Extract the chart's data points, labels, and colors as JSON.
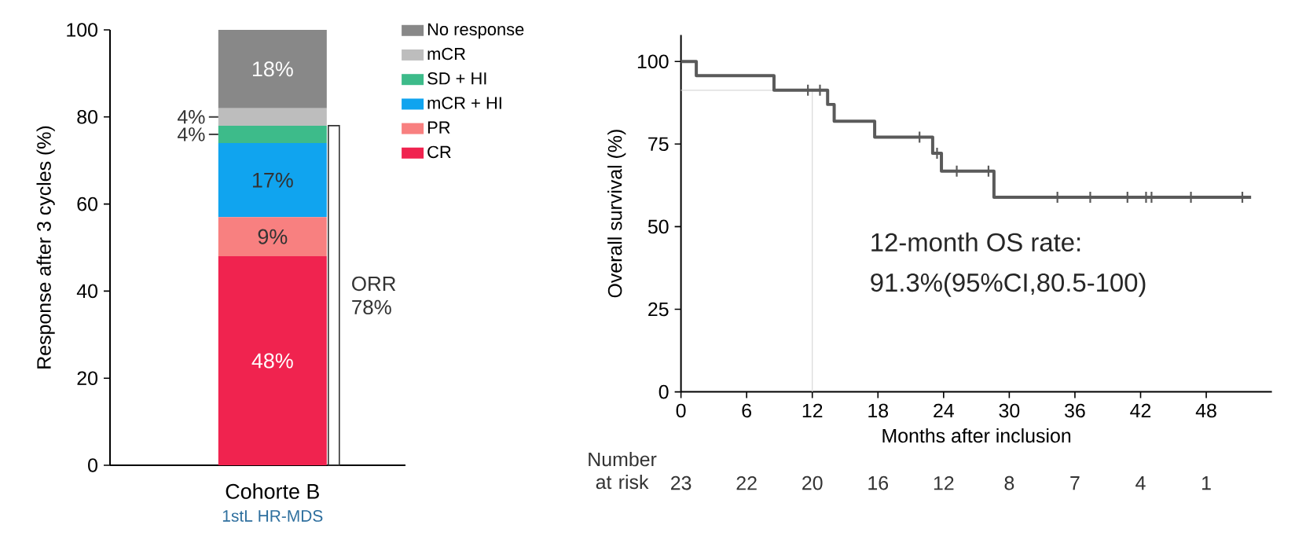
{
  "chart_data": [
    {
      "type": "bar",
      "stacked": true,
      "ylabel": "Response after 3 cycles (%)",
      "categories": [
        "Cohorte B"
      ],
      "series": [
        {
          "name": "CR",
          "color": "#f0234f",
          "values": [
            48
          ],
          "value_labels": [
            "48%"
          ]
        },
        {
          "name": "PR",
          "color": "#f88080",
          "values": [
            9
          ],
          "value_labels": [
            "9%"
          ]
        },
        {
          "name": "mCR + HI",
          "color": "#10a4ef",
          "values": [
            17
          ],
          "value_labels": [
            "17%"
          ]
        },
        {
          "name": "SD + HI",
          "color": "#3dbb8a",
          "values": [
            4
          ],
          "value_labels": [
            "4%"
          ]
        },
        {
          "name": "mCR",
          "color": "#bdbdbd",
          "values": [
            4
          ],
          "value_labels": [
            "4%"
          ]
        },
        {
          "name": "No response",
          "color": "#888888",
          "values": [
            18
          ],
          "value_labels": [
            "18%"
          ]
        }
      ],
      "ylim": [
        0,
        100
      ],
      "yticks": [
        0,
        20,
        40,
        60,
        80,
        100
      ],
      "legend": "top right",
      "annotations": [
        "1stL HR-MDS",
        "ORR 78%"
      ]
    },
    {
      "type": "step",
      "xlabel": "Months after inclusion",
      "ylabel": "Overall survival (%)",
      "xlim": [
        0,
        54
      ],
      "ylim": [
        0,
        108
      ],
      "xticks": [
        0,
        6,
        12,
        18,
        24,
        30,
        36,
        42,
        48
      ],
      "yticks": [
        0,
        25,
        50,
        75,
        100
      ],
      "series": [
        {
          "color": "#5a5a5a",
          "x": [
            0,
            1.4,
            8.5,
            13.4,
            14.0,
            17.7,
            23.0,
            23.8,
            28.6,
            52.1
          ],
          "values": [
            100,
            95.7,
            91.3,
            87,
            81.9,
            77.1,
            72.2,
            66.8,
            58.9,
            58.9
          ]
        },
        {
          "type": "scatter",
          "marker": "cross",
          "color": "#5a5a5a",
          "x": [
            11.6,
            12.7,
            21.8,
            23.4,
            25.2,
            28.1,
            34.4,
            37.4,
            40.8,
            42.5,
            43.0,
            46.6,
            51.3
          ],
          "values": [
            91.3,
            91.3,
            77.1,
            72.2,
            66.8,
            66.8,
            58.9,
            58.9,
            58.9,
            58.9,
            58.9,
            58.9,
            58.9
          ]
        }
      ],
      "ref_lines": [
        {
          "axis": "x",
          "value": 12,
          "color": "#d9d9d9"
        },
        {
          "axis": "y",
          "value": 91.3,
          "color": "#d9d9d9"
        }
      ],
      "annotations": [
        "12-month OS rate:",
        "91.3%(95%CI,80.5-100)",
        "Number at risk",
        "23",
        "22",
        "20",
        "16",
        "12",
        "8",
        "7",
        "4",
        "1"
      ]
    }
  ]
}
